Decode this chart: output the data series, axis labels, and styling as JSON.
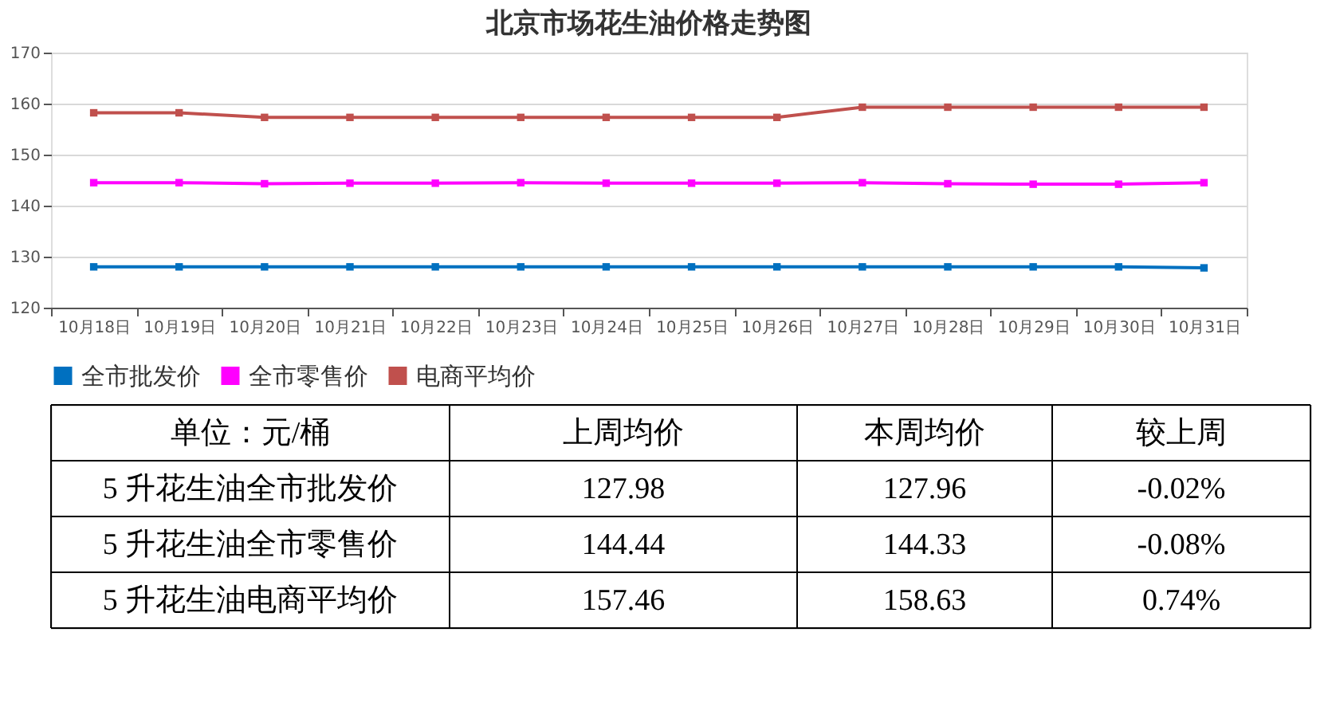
{
  "chart_data": {
    "type": "line",
    "title": "北京市场花生油价格走势图",
    "categories": [
      "10月18日",
      "10月19日",
      "10月20日",
      "10月21日",
      "10月22日",
      "10月23日",
      "10月24日",
      "10月25日",
      "10月26日",
      "10月27日",
      "10月28日",
      "10月29日",
      "10月30日",
      "10月31日"
    ],
    "series": [
      {
        "name": "全市批发价",
        "color": "#0070c0",
        "values": [
          128.0,
          128.0,
          128.0,
          128.0,
          128.0,
          128.0,
          128.0,
          128.0,
          128.0,
          128.0,
          128.0,
          128.0,
          128.0,
          127.8
        ]
      },
      {
        "name": "全市零售价",
        "color": "#ff00ff",
        "values": [
          144.5,
          144.5,
          144.3,
          144.4,
          144.4,
          144.5,
          144.4,
          144.4,
          144.4,
          144.5,
          144.3,
          144.2,
          144.2,
          144.5
        ]
      },
      {
        "name": "电商平均价",
        "color": "#c0504d",
        "values": [
          158.2,
          158.2,
          157.3,
          157.3,
          157.3,
          157.3,
          157.3,
          157.3,
          157.3,
          159.3,
          159.3,
          159.3,
          159.3,
          159.3
        ]
      }
    ],
    "ylim": [
      120,
      170
    ],
    "yticks": [
      120,
      130,
      140,
      150,
      160,
      170
    ],
    "grid": "y",
    "legend": "bottom",
    "marker": "square",
    "line_style": "solid",
    "annotations": [
      "单位：元/桶",
      "上周均价",
      "本周均价",
      "较上周",
      "5 升花生油全市批发价",
      "127.98",
      "127.96",
      "-0.02%",
      "5 升花生油全市零售价",
      "144.44",
      "144.33",
      "-0.08%",
      "5 升花生油电商平均价",
      "157.46",
      "158.63",
      "0.74%"
    ]
  }
}
